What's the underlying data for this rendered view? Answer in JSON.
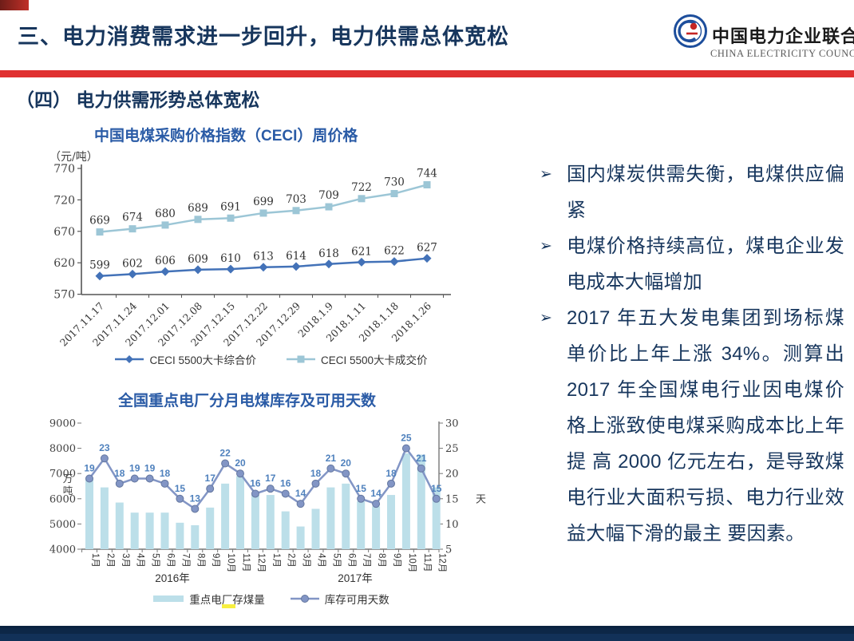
{
  "header": {
    "title": "三、电力消费需求进一步回升，电力供需总体宽松",
    "logo": {
      "emblem_letters": "CEC",
      "org_cn": "中国电力企业联合会",
      "org_en": "CHINA ELECTRICITY COUNCIL"
    },
    "accent_color": "#e03030"
  },
  "section": {
    "title": "（四）  电力供需形势总体宽松"
  },
  "bullets": {
    "marker": "➢",
    "items": [
      {
        "text": "国内煤炭供需失衡，电煤供应偏紧"
      },
      {
        "text": "电煤价格持续高位，煤电企业发电成本大幅增加"
      },
      {
        "text": "2017 年五大发电集团到场标煤单价比上年上涨 34%。测算出2017 年全国煤电行业因电煤价格上涨致使电煤采购成本比上年提 高 2000 亿元左右，是导致煤电行业大面积亏损、电力行业效益大幅下滑的最主 要因素。"
      }
    ]
  },
  "chart_data": [
    {
      "type": "line",
      "title": "中国电煤采购价格指数（CECI）周价格",
      "unit_label": "（元/吨）",
      "x": [
        "2017.11.17",
        "2017.11.24",
        "2017.12.01",
        "2017.12.08",
        "2017.12.15",
        "2017.12.22",
        "2017.12.29",
        "2018.1.9",
        "2018.1.11",
        "2018.1.18",
        "2018.1.26"
      ],
      "ylim": [
        570,
        770
      ],
      "yticks": [
        570,
        620,
        670,
        720,
        770
      ],
      "grid": false,
      "legend_position": "bottom",
      "series": [
        {
          "name": "CECI 5500大卡综合价",
          "marker": "diamond",
          "color": "#4372b8",
          "values": [
            599,
            602,
            606,
            609,
            610,
            613,
            614,
            618,
            621,
            622,
            627
          ]
        },
        {
          "name": "CECI 5500大卡成交价",
          "marker": "square",
          "color": "#9cc6d6",
          "values": [
            669,
            674,
            680,
            689,
            691,
            699,
            703,
            709,
            722,
            730,
            744
          ]
        }
      ]
    },
    {
      "type": "bar+line",
      "title": "全国重点电厂分月电煤库存及可用天数",
      "categories": [
        "1月",
        "2月",
        "3月",
        "4月",
        "5月",
        "6月",
        "7月",
        "8月",
        "9月",
        "10月",
        "11月",
        "12月",
        "1月",
        "2月",
        "3月",
        "4月",
        "5月",
        "6月",
        "7月",
        "8月",
        "9月",
        "10月",
        "11月",
        "12月"
      ],
      "group_labels": [
        "2016年",
        "2017年"
      ],
      "left_axis": {
        "unit": "万吨",
        "lim": [
          4000,
          9000
        ],
        "ticks": [
          4000,
          5000,
          6000,
          7000,
          8000,
          9000
        ]
      },
      "right_axis": {
        "unit": "天",
        "lim": [
          5,
          30
        ],
        "ticks": [
          5,
          10,
          15,
          20,
          25,
          30
        ]
      },
      "bar_series": {
        "name": "重点电厂存煤量",
        "color": "#bcdfe9",
        "values": [
          6850,
          6450,
          5850,
          5450,
          5450,
          5450,
          5050,
          4950,
          5650,
          6600,
          6900,
          6150,
          6150,
          5500,
          4900,
          5600,
          6450,
          6600,
          5900,
          5700,
          6150,
          7800,
          7750,
          6450
        ]
      },
      "line_series": {
        "name": "库存可用天数",
        "color": "#8295c5",
        "label_color": "#4f81bd",
        "values": [
          19,
          23,
          18,
          19,
          19,
          18,
          15,
          13,
          17,
          22,
          20,
          16,
          17,
          16,
          14,
          18,
          21,
          20,
          15,
          14,
          18,
          25,
          21,
          15
        ]
      }
    }
  ]
}
